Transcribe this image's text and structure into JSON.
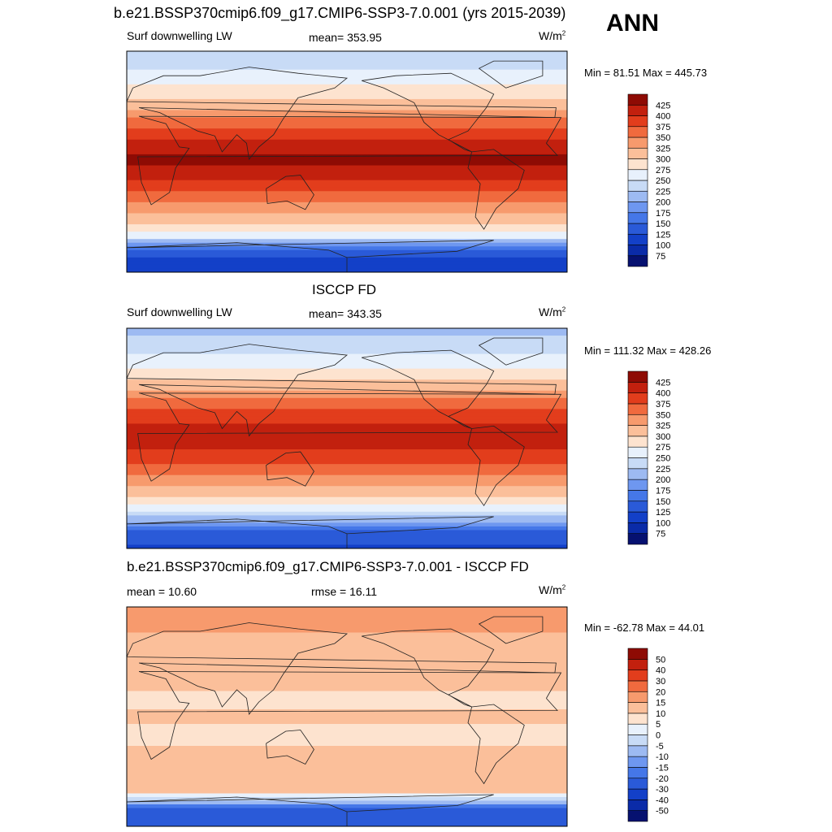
{
  "header": {
    "title": "b.e21.BSSP370cmip6.f09_g17.CMIP6-SSP3-7.0.001 (yrs 2015-2039)",
    "season": "ANN"
  },
  "panels": [
    {
      "id": "model",
      "title": "",
      "variable": "Surf downwelling LW",
      "stat": "mean= 353.95",
      "stat2": "",
      "units": "W/m",
      "units_sup": "2",
      "minmax": "Min =  81.51 Max = 445.73"
    },
    {
      "id": "obs",
      "title": "ISCCP FD",
      "variable": "Surf downwelling LW",
      "stat": "mean= 343.35",
      "stat2": "",
      "units": "W/m",
      "units_sup": "2",
      "minmax": "Min = 111.32 Max = 428.26"
    },
    {
      "id": "diff",
      "title": "b.e21.BSSP370cmip6.f09_g17.CMIP6-SSP3-7.0.001 - ISCCP FD",
      "variable": "",
      "stat": "mean =  10.60",
      "stat2": "rmse =  16.11",
      "units": "W/m",
      "units_sup": "2",
      "minmax": "Min = -62.78 Max =  44.01"
    }
  ],
  "chart_data": [
    {
      "type": "heatmap",
      "title": "b.e21.BSSP370cmip6.f09_g17.CMIP6-SSP3-7.0.001 (yrs 2015-2039)",
      "variable": "Surf downwelling LW",
      "units": "W/m2",
      "mean": 353.95,
      "min": 81.51,
      "max": 445.73,
      "colorbar_levels": [
        75,
        100,
        125,
        150,
        175,
        200,
        225,
        250,
        275,
        300,
        325,
        350,
        375,
        400,
        425
      ],
      "colorbar_colors": [
        "#061170",
        "#0a2ba8",
        "#1340c8",
        "#2a5ad8",
        "#4577e8",
        "#6e97f0",
        "#9dbaf2",
        "#c8dbf6",
        "#e8f1fc",
        "#fde3cf",
        "#fbbf9a",
        "#f79a6d",
        "#f06a3e",
        "#e23d1c",
        "#c2200e",
        "#8e0b04"
      ],
      "zonal_profile": [
        {
          "lat": 90,
          "value": 225
        },
        {
          "lat": 70,
          "value": 260
        },
        {
          "lat": 50,
          "value": 300
        },
        {
          "lat": 30,
          "value": 370
        },
        {
          "lat": 10,
          "value": 420
        },
        {
          "lat": 0,
          "value": 430
        },
        {
          "lat": -10,
          "value": 415
        },
        {
          "lat": -30,
          "value": 360
        },
        {
          "lat": -50,
          "value": 300
        },
        {
          "lat": -60,
          "value": 265
        },
        {
          "lat": -75,
          "value": 130
        },
        {
          "lat": -90,
          "value": 100
        }
      ]
    },
    {
      "type": "heatmap",
      "title": "ISCCP FD",
      "variable": "Surf downwelling LW",
      "units": "W/m2",
      "mean": 343.35,
      "min": 111.32,
      "max": 428.26,
      "colorbar_levels": [
        75,
        100,
        125,
        150,
        175,
        200,
        225,
        250,
        275,
        300,
        325,
        350,
        375,
        400,
        425
      ],
      "colorbar_colors": [
        "#061170",
        "#0a2ba8",
        "#1340c8",
        "#2a5ad8",
        "#4577e8",
        "#6e97f0",
        "#9dbaf2",
        "#c8dbf6",
        "#e8f1fc",
        "#fde3cf",
        "#fbbf9a",
        "#f79a6d",
        "#f06a3e",
        "#e23d1c",
        "#c2200e",
        "#8e0b04"
      ],
      "zonal_profile": [
        {
          "lat": 90,
          "value": 215
        },
        {
          "lat": 70,
          "value": 245
        },
        {
          "lat": 50,
          "value": 290
        },
        {
          "lat": 30,
          "value": 360
        },
        {
          "lat": 10,
          "value": 405
        },
        {
          "lat": 0,
          "value": 415
        },
        {
          "lat": -10,
          "value": 400
        },
        {
          "lat": -30,
          "value": 350
        },
        {
          "lat": -50,
          "value": 290
        },
        {
          "lat": -60,
          "value": 255
        },
        {
          "lat": -75,
          "value": 150
        },
        {
          "lat": -90,
          "value": 120
        }
      ]
    },
    {
      "type": "heatmap",
      "title": "b.e21.BSSP370cmip6.f09_g17.CMIP6-SSP3-7.0.001 - ISCCP FD",
      "units": "W/m2",
      "mean": 10.6,
      "rmse": 16.11,
      "min": -62.78,
      "max": 44.01,
      "colorbar_levels": [
        -50,
        -40,
        -30,
        -20,
        -15,
        -10,
        -5,
        0,
        5,
        10,
        15,
        20,
        30,
        40,
        50
      ],
      "colorbar_colors": [
        "#061170",
        "#0a2ba8",
        "#1340c8",
        "#2a5ad8",
        "#4577e8",
        "#6e97f0",
        "#9dbaf2",
        "#c8dbf6",
        "#e8f1fc",
        "#fde3cf",
        "#fbbf9a",
        "#f79a6d",
        "#f06a3e",
        "#e23d1c",
        "#c2200e",
        "#8e0b04"
      ],
      "zonal_profile": [
        {
          "lat": 90,
          "value": 18
        },
        {
          "lat": 70,
          "value": 15
        },
        {
          "lat": 50,
          "value": 12
        },
        {
          "lat": 30,
          "value": 12
        },
        {
          "lat": 10,
          "value": 8
        },
        {
          "lat": 0,
          "value": 14
        },
        {
          "lat": -10,
          "value": 6
        },
        {
          "lat": -30,
          "value": 12
        },
        {
          "lat": -50,
          "value": 12
        },
        {
          "lat": -60,
          "value": 14
        },
        {
          "lat": -75,
          "value": -20
        },
        {
          "lat": -90,
          "value": -25
        }
      ]
    }
  ]
}
